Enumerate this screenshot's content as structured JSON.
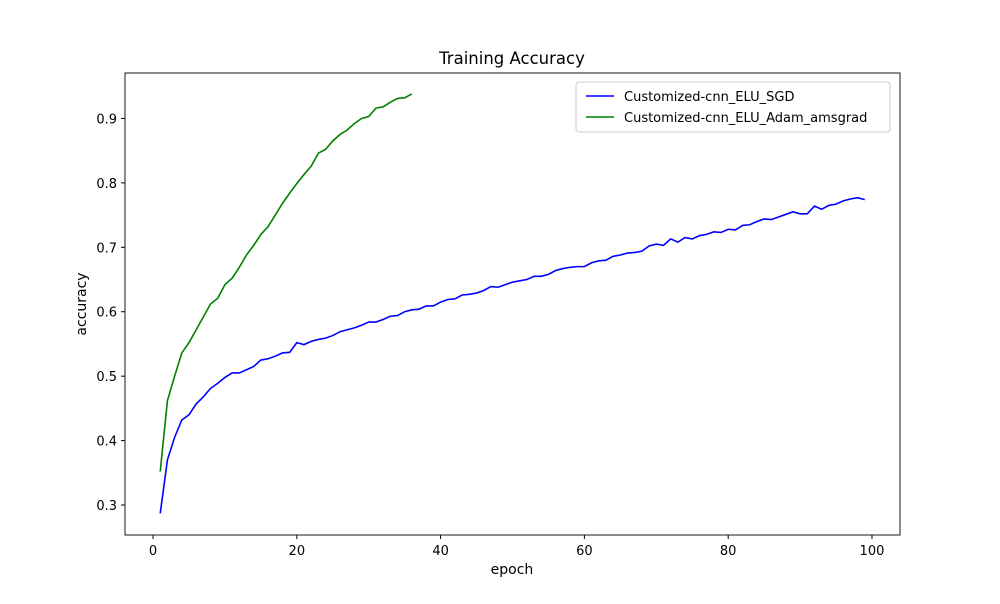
{
  "chart_data": {
    "type": "line",
    "title": "Training Accuracy",
    "x_label": "epoch",
    "y_label": "accuracy",
    "xlim": [
      -3.9,
      103.9
    ],
    "ylim": [
      0.2535,
      0.9705
    ],
    "xticks": [
      0,
      20,
      40,
      60,
      80,
      100
    ],
    "yticks": [
      0.3,
      0.4,
      0.5,
      0.6,
      0.7,
      0.8,
      0.9
    ],
    "legend": "upper right",
    "grid": false,
    "series": [
      {
        "name": "Customized-cnn_ELU_SGD",
        "color": "#0000ff",
        "x": [
          1,
          2,
          3,
          4,
          5,
          6,
          7,
          8,
          9,
          10,
          11,
          12,
          13,
          14,
          15,
          16,
          17,
          18,
          19,
          20,
          21,
          22,
          23,
          24,
          25,
          26,
          27,
          28,
          29,
          30,
          31,
          32,
          33,
          34,
          35,
          36,
          37,
          38,
          39,
          40,
          41,
          42,
          43,
          44,
          45,
          46,
          47,
          48,
          49,
          50,
          51,
          52,
          53,
          54,
          55,
          56,
          57,
          58,
          59,
          60,
          61,
          62,
          63,
          64,
          65,
          66,
          67,
          68,
          69,
          70,
          71,
          72,
          73,
          74,
          75,
          76,
          77,
          78,
          79,
          80,
          81,
          82,
          83,
          84,
          85,
          86,
          87,
          88,
          89,
          90,
          91,
          92,
          93,
          94,
          95,
          96,
          97,
          98,
          99
        ],
        "values": [
          0.287,
          0.37,
          0.405,
          0.432,
          0.44,
          0.457,
          0.468,
          0.481,
          0.489,
          0.498,
          0.505,
          0.505,
          0.51,
          0.515,
          0.525,
          0.527,
          0.531,
          0.536,
          0.537,
          0.552,
          0.549,
          0.554,
          0.557,
          0.559,
          0.563,
          0.569,
          0.572,
          0.575,
          0.579,
          0.584,
          0.584,
          0.588,
          0.593,
          0.594,
          0.6,
          0.603,
          0.604,
          0.609,
          0.609,
          0.615,
          0.619,
          0.62,
          0.626,
          0.627,
          0.629,
          0.633,
          0.639,
          0.638,
          0.642,
          0.646,
          0.648,
          0.65,
          0.655,
          0.655,
          0.658,
          0.664,
          0.667,
          0.669,
          0.67,
          0.67,
          0.676,
          0.679,
          0.68,
          0.686,
          0.688,
          0.691,
          0.692,
          0.694,
          0.702,
          0.705,
          0.703,
          0.713,
          0.708,
          0.715,
          0.713,
          0.718,
          0.72,
          0.724,
          0.723,
          0.728,
          0.727,
          0.734,
          0.735,
          0.74,
          0.744,
          0.743,
          0.747,
          0.751,
          0.755,
          0.752,
          0.752,
          0.764,
          0.759,
          0.765,
          0.767,
          0.772,
          0.775,
          0.777,
          0.774
        ]
      },
      {
        "name": "Customized-cnn_ELU_Adam_amsgrad",
        "color": "#008000",
        "x": [
          1,
          2,
          3,
          4,
          5,
          6,
          7,
          8,
          9,
          10,
          11,
          12,
          13,
          14,
          15,
          16,
          17,
          18,
          19,
          20,
          21,
          22,
          23,
          24,
          25,
          26,
          27,
          28,
          29,
          30,
          31,
          32,
          33,
          34,
          35,
          36
        ],
        "values": [
          0.352,
          0.462,
          0.5,
          0.536,
          0.552,
          0.572,
          0.592,
          0.612,
          0.621,
          0.642,
          0.652,
          0.669,
          0.688,
          0.703,
          0.72,
          0.732,
          0.75,
          0.768,
          0.784,
          0.799,
          0.813,
          0.826,
          0.846,
          0.852,
          0.865,
          0.875,
          0.882,
          0.892,
          0.9,
          0.903,
          0.916,
          0.918,
          0.925,
          0.931,
          0.932,
          0.938
        ]
      }
    ]
  }
}
